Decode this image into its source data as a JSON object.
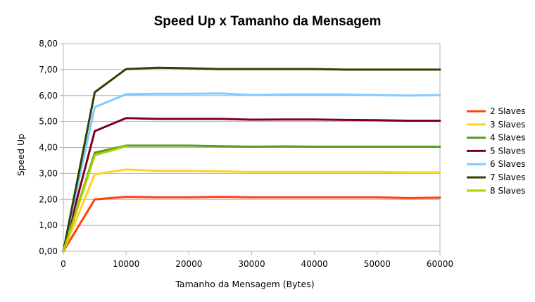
{
  "chart_data": {
    "type": "line",
    "title": "Speed Up x Tamanho da Mensagem",
    "xlabel": "Tamanho da Mensagem (Bytes)",
    "ylabel": "Speed Up",
    "xlim": [
      0,
      60000
    ],
    "ylim": [
      0,
      8
    ],
    "grid": true,
    "legend_position": "right",
    "x_ticks": [
      "0",
      "10000",
      "20000",
      "30000",
      "40000",
      "50000",
      "60000"
    ],
    "y_ticks": [
      "0,00",
      "1,00",
      "2,00",
      "3,00",
      "4,00",
      "5,00",
      "6,00",
      "7,00",
      "8,00"
    ],
    "x": [
      0,
      5000,
      10000,
      15000,
      20000,
      25000,
      30000,
      35000,
      40000,
      45000,
      50000,
      55000,
      60000
    ],
    "series": [
      {
        "name": "2 Slaves",
        "color": "#ff420e",
        "values": [
          0,
          2.0,
          2.1,
          2.08,
          2.08,
          2.1,
          2.08,
          2.08,
          2.08,
          2.08,
          2.08,
          2.05,
          2.07
        ]
      },
      {
        "name": "3 Slaves",
        "color": "#ffd320",
        "values": [
          0,
          2.97,
          3.15,
          3.1,
          3.1,
          3.08,
          3.06,
          3.06,
          3.06,
          3.06,
          3.06,
          3.04,
          3.04
        ]
      },
      {
        "name": "4 Slaves",
        "color": "#579d1c",
        "values": [
          0,
          3.8,
          4.07,
          4.07,
          4.07,
          4.05,
          4.03,
          4.04,
          4.03,
          4.03,
          4.03,
          4.03,
          4.03
        ]
      },
      {
        "name": "5 Slaves",
        "color": "#7e0021",
        "values": [
          0,
          4.63,
          5.13,
          5.1,
          5.1,
          5.1,
          5.07,
          5.08,
          5.08,
          5.06,
          5.05,
          5.03,
          5.03
        ]
      },
      {
        "name": "6 Slaves",
        "color": "#83caff",
        "values": [
          0,
          5.55,
          6.05,
          6.07,
          6.07,
          6.08,
          6.02,
          6.04,
          6.04,
          6.04,
          6.02,
          6.0,
          6.02
        ]
      },
      {
        "name": "7 Slaves",
        "color": "#314004",
        "values": [
          0,
          6.13,
          7.02,
          7.07,
          7.05,
          7.02,
          7.02,
          7.02,
          7.02,
          7.0,
          7.0,
          7.0,
          7.0
        ]
      },
      {
        "name": "8 Slaves",
        "color": "#aecf00",
        "values": [
          0,
          3.7,
          4.05,
          null,
          null,
          null,
          null,
          null,
          null,
          null,
          null,
          null,
          null
        ]
      }
    ]
  }
}
